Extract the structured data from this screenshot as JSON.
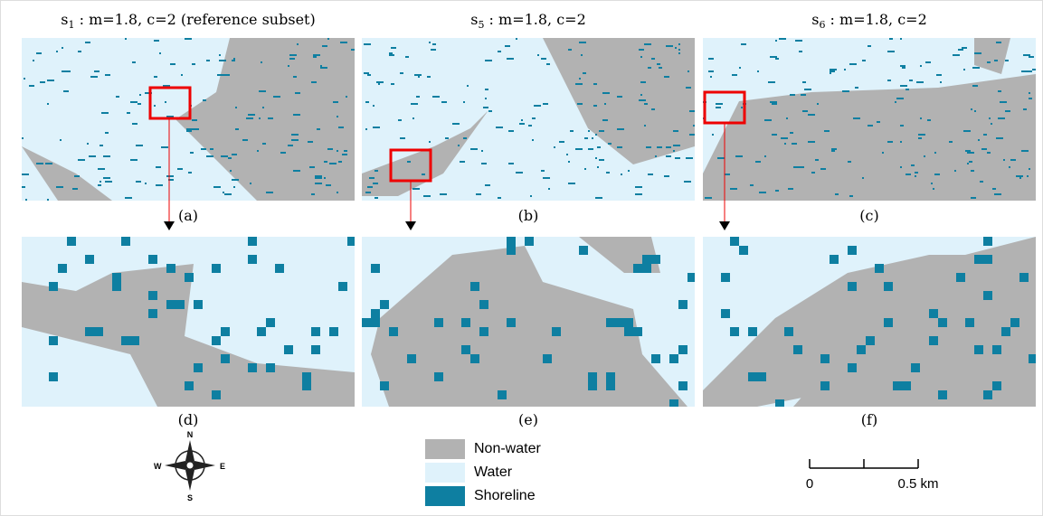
{
  "panels_top": [
    {
      "title": {
        "base": "s",
        "sub": "1",
        "rest": " : m=1.8, c=2 (reference subset)"
      },
      "label": "(a)"
    },
    {
      "title": {
        "base": "s",
        "sub": "5",
        "rest": " : m=1.8, c=2"
      },
      "label": "(b)"
    },
    {
      "title": {
        "base": "s",
        "sub": "6",
        "rest": " : m=1.8, c=2"
      },
      "label": "(c)"
    }
  ],
  "panels_bottom": [
    {
      "label": "(d)"
    },
    {
      "label": "(e)"
    },
    {
      "label": "(f)"
    }
  ],
  "legend": [
    {
      "label": "Non-water",
      "color": "#b2b2b2"
    },
    {
      "label": "Water",
      "color": "#dff2fb"
    },
    {
      "label": "Shoreline",
      "color": "#0e7fa1"
    }
  ],
  "compass": {
    "n": "N",
    "s": "S",
    "e": "E",
    "w": "W"
  },
  "scale_bar": {
    "start": "0",
    "end": "0.5 km"
  }
}
